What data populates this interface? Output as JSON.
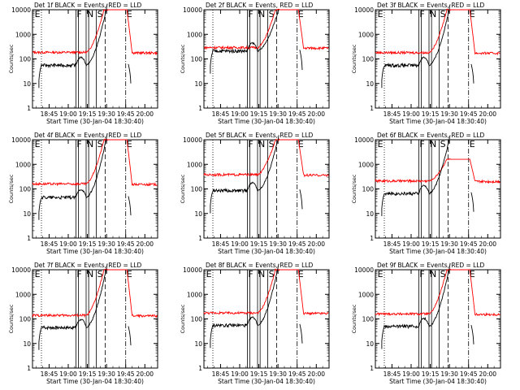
{
  "chart_data": [
    {
      "type": "line",
      "title": "Det 1f BLACK = Events, RED = LLD",
      "xlabel": "Start Time (30-Jan-04 18:30:40)",
      "ylabel": "Counts/sec",
      "x_tick_labels": [
        "18:45",
        "19:00",
        "19:15",
        "19:30",
        "19:45",
        "20:00"
      ],
      "y_tick_labels": [
        "1",
        "10",
        "100",
        "1000",
        "10000"
      ],
      "ylim": [
        1,
        10000
      ],
      "y_scale": "log",
      "time_range": [
        "18:32",
        "20:10"
      ],
      "red_base": 185,
      "black_base": 55,
      "red_sat": true,
      "markers": [
        "E",
        "F",
        "N",
        "S",
        "E"
      ]
    },
    {
      "type": "line",
      "title": "Det 2f BLACK = Events, RED = LLD",
      "xlabel": "Start Time (30-Jan-04 18:30:40)",
      "ylabel": "Counts/sec",
      "x_tick_labels": [
        "18:45",
        "19:00",
        "19:15",
        "19:30",
        "19:45",
        "20:00"
      ],
      "y_tick_labels": [
        "1",
        "10",
        "100",
        "1000",
        "10000"
      ],
      "ylim": [
        1,
        10000
      ],
      "y_scale": "log",
      "time_range": [
        "18:32",
        "20:10"
      ],
      "red_base": 290,
      "black_base": 210,
      "red_sat": true,
      "markers": [
        "F",
        "N",
        "S",
        "E"
      ]
    },
    {
      "type": "line",
      "title": "Det 3f BLACK = Events, RED = LLD",
      "xlabel": "Start Time (30-Jan-04 18:30:40)",
      "ylabel": "Counts/sec",
      "x_tick_labels": [
        "18:45",
        "19:00",
        "19:15",
        "19:30",
        "19:45",
        "20:00"
      ],
      "y_tick_labels": [
        "1",
        "10",
        "100",
        "1000",
        "10000"
      ],
      "ylim": [
        1,
        10000
      ],
      "y_scale": "log",
      "time_range": [
        "18:32",
        "20:10"
      ],
      "red_base": 180,
      "black_base": 55,
      "red_sat": true,
      "markers": [
        "E",
        "F",
        "N",
        "S",
        "E"
      ]
    },
    {
      "type": "line",
      "title": "Det 4f BLACK = Events, RED = LLD",
      "xlabel": "Start Time (30-Jan-04 18:30:40)",
      "ylabel": "Counts/sec",
      "x_tick_labels": [
        "18:45",
        "19:00",
        "19:15",
        "19:30",
        "19:45",
        "20:00"
      ],
      "y_tick_labels": [
        "1",
        "10",
        "100",
        "1000",
        "10000"
      ],
      "ylim": [
        1,
        10000
      ],
      "y_scale": "log",
      "time_range": [
        "18:32",
        "20:10"
      ],
      "red_base": 160,
      "black_base": 45,
      "red_sat": true,
      "markers": [
        "E",
        "F",
        "N",
        "S",
        "E"
      ]
    },
    {
      "type": "line",
      "title": "Det 5f BLACK = Events, RED = LLD",
      "xlabel": "Start Time (30-Jan-04 18:30:40)",
      "ylabel": "Counts/sec",
      "x_tick_labels": [
        "18:45",
        "19:00",
        "19:15",
        "19:30",
        "19:45",
        "20:00"
      ],
      "y_tick_labels": [
        "1",
        "10",
        "100",
        "1000",
        "10000"
      ],
      "ylim": [
        1,
        10000
      ],
      "y_scale": "log",
      "time_range": [
        "18:32",
        "20:10"
      ],
      "red_base": 380,
      "black_base": 85,
      "red_sat": true,
      "markers": [
        "F",
        "N",
        "S",
        "E"
      ]
    },
    {
      "type": "line",
      "title": "Det 6f BLACK = Events, RED = LLD",
      "xlabel": "Start Time (30-Jan-04 18:30:40)",
      "ylabel": "Counts/sec",
      "x_tick_labels": [
        "18:45",
        "19:00",
        "19:15",
        "19:30",
        "19:45",
        "20:00"
      ],
      "y_tick_labels": [
        "1",
        "10",
        "100",
        "1000",
        "10000"
      ],
      "ylim": [
        1,
        10000
      ],
      "y_scale": "log",
      "time_range": [
        "18:32",
        "20:10"
      ],
      "red_base": 210,
      "black_base": 65,
      "red_sat": false,
      "markers": [
        "E",
        "F",
        "N",
        "S",
        "E"
      ]
    },
    {
      "type": "line",
      "title": "Det 7f BLACK = Events, RED = LLD",
      "xlabel": "Start Time (30-Jan-04 18:30:40)",
      "ylabel": "Counts/sec",
      "x_tick_labels": [
        "18:45",
        "19:00",
        "19:15",
        "19:30",
        "19:45",
        "20:00"
      ],
      "y_tick_labels": [
        "1",
        "10",
        "100",
        "1000",
        "10000"
      ],
      "ylim": [
        1,
        10000
      ],
      "y_scale": "log",
      "time_range": [
        "18:32",
        "20:10"
      ],
      "red_base": 140,
      "black_base": 45,
      "red_sat": true,
      "markers": [
        "E",
        "F",
        "N",
        "S",
        "E"
      ]
    },
    {
      "type": "line",
      "title": "Det 8f BLACK = Events, RED = LLD",
      "xlabel": "Start Time (30-Jan-04 18:30:40)",
      "ylabel": "Counts/sec",
      "x_tick_labels": [
        "18:45",
        "19:00",
        "19:15",
        "19:30",
        "19:45",
        "20:00"
      ],
      "y_tick_labels": [
        "1",
        "10",
        "100",
        "1000",
        "10000"
      ],
      "ylim": [
        1,
        10000
      ],
      "y_scale": "log",
      "time_range": [
        "18:32",
        "20:10"
      ],
      "red_base": 175,
      "black_base": 55,
      "red_sat": true,
      "markers": [
        "E",
        "F",
        "N",
        "S",
        "E"
      ]
    },
    {
      "type": "line",
      "title": "Det 9f BLACK = Events, RED = LLD",
      "xlabel": "Start Time (30-Jan-04 18:30:40)",
      "ylabel": "Counts/sec",
      "x_tick_labels": [
        "18:45",
        "19:00",
        "19:15",
        "19:30",
        "19:45",
        "20:00"
      ],
      "y_tick_labels": [
        "1",
        "10",
        "100",
        "1000",
        "10000"
      ],
      "ylim": [
        1,
        10000
      ],
      "y_scale": "log",
      "time_range": [
        "18:32",
        "20:10"
      ],
      "red_base": 160,
      "black_base": 50,
      "red_sat": true,
      "markers": [
        "E",
        "F",
        "N",
        "S",
        "E"
      ]
    }
  ]
}
